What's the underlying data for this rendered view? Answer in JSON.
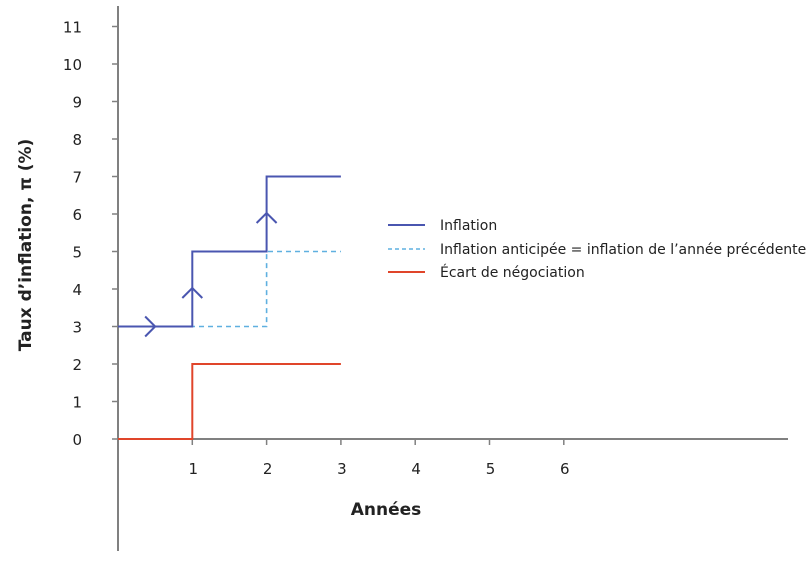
{
  "chart_data": {
    "type": "line",
    "title": "",
    "xlabel": "Années",
    "ylabel": "Taux d’inflation, π (%)",
    "xlim": [
      0,
      9
    ],
    "ylim": [
      0,
      11
    ],
    "x_ticks": [
      1,
      2,
      3,
      4,
      5,
      6
    ],
    "y_ticks": [
      0,
      1,
      2,
      3,
      4,
      5,
      6,
      7,
      8,
      9,
      10,
      11
    ],
    "grid": false,
    "legend_position": "right-middle",
    "step": true,
    "series": [
      {
        "name": "Inflation",
        "style": "solid",
        "color": "#4a56b0",
        "points": [
          [
            0,
            3
          ],
          [
            1,
            3
          ],
          [
            1,
            5
          ],
          [
            2,
            5
          ],
          [
            2,
            7
          ],
          [
            3,
            7
          ]
        ],
        "arrows": [
          {
            "x": 0.5,
            "y": 3,
            "direction": "right"
          },
          {
            "x": 1,
            "y": 4,
            "direction": "up"
          },
          {
            "x": 2,
            "y": 6,
            "direction": "up"
          }
        ]
      },
      {
        "name": "Inflation anticipée = inflation de l’année précédente",
        "style": "dashed",
        "color": "#5fb0e0",
        "points": [
          [
            0,
            3
          ],
          [
            2,
            3
          ],
          [
            2,
            5
          ],
          [
            3,
            5
          ]
        ]
      },
      {
        "name": "Écart de négociation",
        "style": "solid",
        "color": "#e0452a",
        "points": [
          [
            0,
            0
          ],
          [
            1,
            0
          ],
          [
            1,
            2
          ],
          [
            3,
            2
          ]
        ]
      }
    ]
  },
  "axes": {
    "x_title": "Années",
    "y_title": "Taux d’inflation, π (%)",
    "x_tick_labels": [
      "1",
      "2",
      "3",
      "4",
      "5",
      "6"
    ],
    "y_tick_labels": [
      "0",
      "1",
      "2",
      "3",
      "4",
      "5",
      "6",
      "7",
      "8",
      "9",
      "10",
      "11"
    ],
    "axis_color": "#808080"
  },
  "legend": {
    "items": [
      {
        "label": "Inflation",
        "color": "#4a56b0",
        "style": "solid"
      },
      {
        "label": "Inflation anticipée = inflation de l’année précédente",
        "color": "#5fb0e0",
        "style": "dashed"
      },
      {
        "label": "Écart de négociation",
        "color": "#e0452a",
        "style": "solid"
      }
    ]
  }
}
